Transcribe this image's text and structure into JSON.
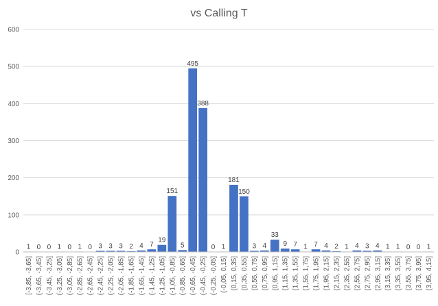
{
  "chart_data": {
    "type": "bar",
    "title": "vs Calling T",
    "xlabel": "",
    "ylabel": "",
    "ylim": [
      0,
      600
    ],
    "yticks": [
      0,
      100,
      200,
      300,
      400,
      500,
      600
    ],
    "grid": true,
    "legend": "none",
    "bar_color": "#4472C4",
    "categories": [
      "[-3,85, -3,65]",
      "(-3,65, -3,45]",
      "(-3,45, -3,25]",
      "(-3,25, -3,05]",
      "(-3,05, -2,85]",
      "(-2,85, -2,65]",
      "(-2,65, -2,45]",
      "(-2,45, -2,25]",
      "(-2,25, -2,05]",
      "(-2,05, -1,85]",
      "(-1,85, -1,65]",
      "(-1,65, -1,45]",
      "(-1,45, -1,25]",
      "(-1,25, -1,05]",
      "(-1,05, -0,85]",
      "(-0,85, -0,65]",
      "(-0,65, -0,45]",
      "(-0,45, -0,25]",
      "(-0,25, -0,05]",
      "(-0,05, 0,15]",
      "(0,15, 0,35]",
      "(0,35, 0,55]",
      "(0,55, 0,75]",
      "(0,75, 0,95]",
      "(0,95, 1,15]",
      "(1,15, 1,35]",
      "(1,35, 1,55]",
      "(1,55, 1,75]",
      "(1,75, 1,95]",
      "(1,95, 2,15]",
      "(2,15, 2,35]",
      "(2,35, 2,55]",
      "(2,55, 2,75]",
      "(2,75, 2,95]",
      "(2,95, 3,15]",
      "(3,15, 3,35]",
      "(3,35, 3,55]",
      "(3,55, 3,75]",
      "(3,75, 3,95]",
      "(3,95, 4,15]"
    ],
    "values": [
      1,
      0,
      0,
      1,
      0,
      1,
      0,
      3,
      3,
      3,
      2,
      4,
      7,
      19,
      151,
      5,
      495,
      388,
      0,
      1,
      181,
      150,
      3,
      4,
      33,
      9,
      7,
      1,
      7,
      4,
      2,
      1,
      4,
      3,
      4,
      1,
      1,
      0,
      0,
      1
    ]
  }
}
